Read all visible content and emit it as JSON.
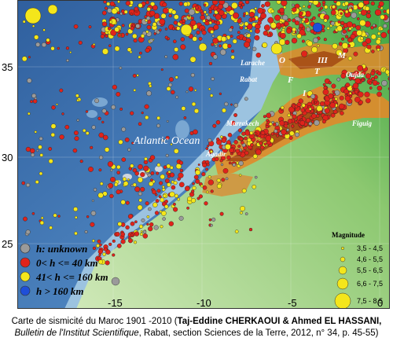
{
  "map": {
    "ocean_label": "Atlantic Ocean",
    "place_labels": [
      "Larache",
      "Rabat",
      "Oujda",
      "Marrakech",
      "Agadir",
      "Figuig"
    ],
    "zone_labels": [
      "O",
      "III",
      "M",
      "T",
      "I",
      "F"
    ],
    "y_ticks": [
      "35",
      "30",
      "25"
    ],
    "x_ticks": [
      "-15",
      "-10",
      "-5",
      "0"
    ],
    "colors": {
      "deep_ocean": "#2f69a8",
      "ocean": "#5a8fc6",
      "shelf": "#9cc3e0",
      "lowland": "#a8d08d",
      "green": "#3aa33f",
      "mountain_orange": "#e08a2a",
      "mountain_dark": "#a04412",
      "desert_pale": "#c6e3b4",
      "event_unknown": "#9a9a9a",
      "event_shallow": "#e0231b",
      "event_intermediate": "#f4e61b",
      "event_deep": "#1f4fd8"
    }
  },
  "legend": {
    "depth": [
      {
        "label": "h: unknown",
        "color": "#9a9a9a"
      },
      {
        "label": "0< h <= 40 km",
        "color": "#e0231b"
      },
      {
        "label": "41< h <= 160 km",
        "color": "#f4e61b"
      },
      {
        "label": "h > 160 km",
        "color": "#1f4fd8"
      }
    ],
    "magnitude_title": "Magnitude",
    "magnitude": [
      "3,5 - 4,5",
      "4,6 - 5,5",
      "5,5 - 6,5",
      "6,6 - 7,5",
      "7,5 - 8,5"
    ]
  },
  "caption": {
    "line1_plain": "Carte de sismicité du Maroc 1901 -2010 (",
    "line1_bold": "Taj-Eddine CHERKAOUI & Ahmed EL HASSANI,",
    "line2_italic": "Bulletin de l'Institut Scientifique",
    "line2_plain": ", Rabat, section Sciences de la Terre, 2012, n° 34, p. 45-55)"
  }
}
